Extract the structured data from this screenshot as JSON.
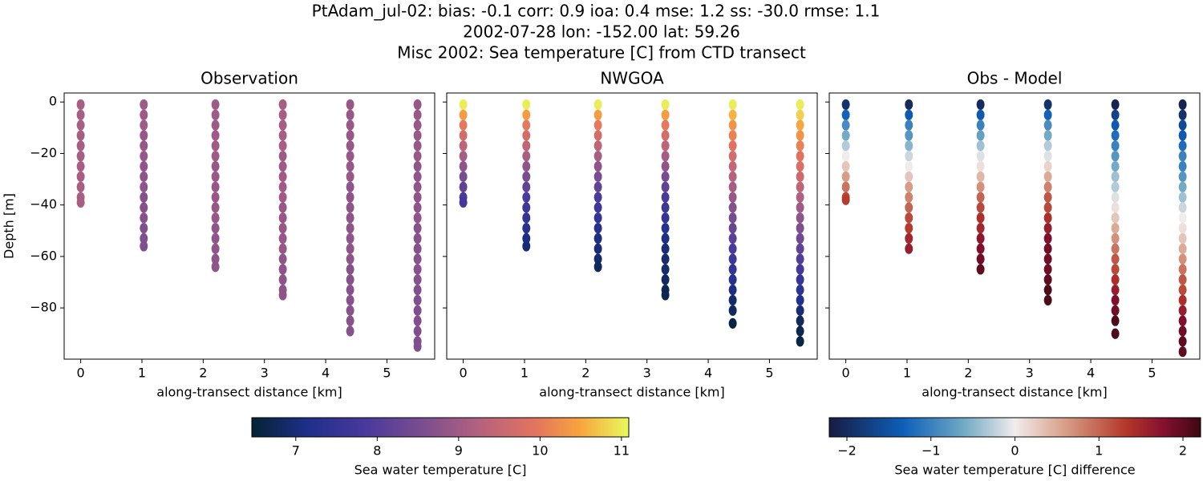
{
  "suptitle": [
    "PtAdam_jul-02: bias: -0.1  corr: 0.9  ioa: 0.4  mse: 1.2  ss: -30.0  rmse: 1.1",
    "2002-07-28 lon: -152.00 lat: 59.26",
    "Misc 2002: Sea temperature [C] from CTD transect"
  ],
  "chart_data": [
    {
      "type": "scatter",
      "title": "Observation",
      "x_label": "along-transect distance [km]",
      "y_label": "Depth [m]",
      "colorbar": 0,
      "xlim": [
        -0.27,
        5.78
      ],
      "ylim": [
        -99.9,
        3.5
      ],
      "xticks": [
        0,
        1,
        2,
        3,
        4,
        5
      ],
      "yticks": [
        0,
        {
          "value": -20,
          "label": "−20"
        },
        {
          "value": -40,
          "label": "−40"
        },
        {
          "value": -60,
          "label": "−60"
        },
        {
          "value": -80,
          "label": "−80"
        }
      ],
      "series": [
        {
          "x": 0,
          "y": [
            -1,
            -5,
            -9,
            -13,
            -17,
            -21,
            -25,
            -29,
            -33,
            -37,
            -39
          ],
          "values": [
            9.1,
            9.1,
            9.1,
            9.1,
            9.1,
            9.1,
            9.1,
            9.1,
            9.1,
            9.1,
            9.1
          ]
        },
        {
          "x": 1.03,
          "y": [
            -1,
            -5,
            -9,
            -13,
            -17,
            -21,
            -25,
            -29,
            -33,
            -37,
            -41,
            -45,
            -49,
            -53,
            -56
          ],
          "values": [
            9.0,
            9.0,
            9.0,
            8.9,
            8.9,
            8.9,
            8.8,
            8.8,
            8.8,
            8.7,
            8.7,
            8.7,
            8.6,
            8.6,
            8.6
          ]
        },
        {
          "x": 2.2,
          "y": [
            -1,
            -5,
            -9,
            -13,
            -17,
            -21,
            -25,
            -29,
            -33,
            -37,
            -41,
            -45,
            -49,
            -53,
            -57,
            -61,
            -64
          ],
          "values": [
            9.0,
            9.0,
            9.0,
            9.0,
            9.0,
            9.0,
            8.9,
            8.9,
            8.9,
            8.9,
            8.9,
            8.9,
            8.8,
            8.8,
            8.8,
            8.8,
            8.8
          ]
        },
        {
          "x": 3.3,
          "y": [
            -1,
            -5,
            -9,
            -13,
            -17,
            -21,
            -25,
            -29,
            -33,
            -37,
            -41,
            -45,
            -49,
            -53,
            -57,
            -61,
            -65,
            -69,
            -73,
            -75
          ],
          "values": [
            9.1,
            9.1,
            9.1,
            9.1,
            9.1,
            9.0,
            9.0,
            9.0,
            9.0,
            9.0,
            8.9,
            8.9,
            8.9,
            8.9,
            8.9,
            8.8,
            8.8,
            8.8,
            8.8,
            8.8
          ]
        },
        {
          "x": 4.4,
          "y": [
            -1,
            -5,
            -9,
            -13,
            -17,
            -21,
            -25,
            -29,
            -33,
            -37,
            -41,
            -45,
            -49,
            -53,
            -57,
            -61,
            -65,
            -69,
            -73,
            -77,
            -81,
            -85,
            -89
          ],
          "values": [
            8.9,
            8.9,
            8.9,
            8.9,
            8.9,
            8.9,
            8.9,
            8.9,
            8.8,
            8.8,
            8.8,
            8.8,
            8.8,
            8.8,
            8.8,
            8.8,
            8.7,
            8.7,
            8.7,
            8.7,
            8.7,
            8.7,
            8.7
          ]
        },
        {
          "x": 5.5,
          "y": [
            -1,
            -5,
            -9,
            -13,
            -17,
            -21,
            -25,
            -29,
            -33,
            -37,
            -41,
            -45,
            -49,
            -53,
            -57,
            -61,
            -65,
            -69,
            -73,
            -77,
            -81,
            -85,
            -89,
            -93,
            -95
          ],
          "values": [
            8.9,
            8.9,
            8.9,
            8.9,
            8.9,
            8.9,
            8.8,
            8.8,
            8.8,
            8.8,
            8.8,
            8.8,
            8.7,
            8.7,
            8.7,
            8.7,
            8.7,
            8.7,
            8.6,
            8.6,
            8.6,
            8.6,
            8.6,
            8.6,
            8.6
          ]
        }
      ]
    },
    {
      "type": "scatter",
      "title": "NWGOA",
      "x_label": "along-transect distance [km]",
      "colorbar": 0,
      "xlim": [
        -0.27,
        5.78
      ],
      "ylim": [
        -99.9,
        3.5
      ],
      "xticks": [
        0,
        1,
        2,
        3,
        4,
        5
      ],
      "yticks": [
        0,
        -20,
        -40,
        -60,
        -80
      ],
      "series": [
        {
          "x": 0,
          "y": [
            -1,
            -5,
            -9,
            -13,
            -17,
            -21,
            -25,
            -29,
            -33,
            -37,
            -39
          ],
          "values": [
            11.0,
            10.4,
            10.0,
            9.7,
            9.4,
            9.1,
            8.8,
            8.5,
            8.2,
            7.9,
            7.8
          ]
        },
        {
          "x": 1.03,
          "y": [
            -1,
            -5,
            -9,
            -13,
            -17,
            -21,
            -25,
            -29,
            -33,
            -37,
            -41,
            -45,
            -49,
            -53,
            -56
          ],
          "values": [
            11.0,
            10.4,
            10.0,
            9.7,
            9.4,
            9.1,
            8.8,
            8.5,
            8.2,
            7.9,
            7.7,
            7.5,
            7.3,
            7.1,
            7.0
          ]
        },
        {
          "x": 2.2,
          "y": [
            -1,
            -5,
            -9,
            -13,
            -17,
            -21,
            -25,
            -29,
            -33,
            -37,
            -41,
            -45,
            -49,
            -53,
            -57,
            -61,
            -64
          ],
          "values": [
            11.0,
            10.4,
            10.0,
            9.7,
            9.4,
            9.1,
            8.8,
            8.5,
            8.2,
            7.9,
            7.7,
            7.5,
            7.3,
            7.1,
            7.0,
            6.9,
            6.8
          ]
        },
        {
          "x": 3.3,
          "y": [
            -1,
            -5,
            -9,
            -13,
            -17,
            -21,
            -25,
            -29,
            -33,
            -37,
            -41,
            -45,
            -49,
            -53,
            -57,
            -61,
            -65,
            -69,
            -73,
            -75
          ],
          "values": [
            11.0,
            10.4,
            10.0,
            9.7,
            9.4,
            9.1,
            8.8,
            8.5,
            8.2,
            7.9,
            7.7,
            7.5,
            7.3,
            7.1,
            7.0,
            6.9,
            6.9,
            6.8,
            6.7,
            6.7
          ]
        },
        {
          "x": 4.4,
          "y": [
            -1,
            -5,
            -9,
            -13,
            -17,
            -21,
            -25,
            -29,
            -33,
            -37,
            -41,
            -45,
            -49,
            -53,
            -57,
            -61,
            -65,
            -69,
            -73,
            -77,
            -81,
            -86
          ],
          "values": [
            11.0,
            10.6,
            10.3,
            10.1,
            9.9,
            9.7,
            9.5,
            9.3,
            9.1,
            8.9,
            8.7,
            8.5,
            8.3,
            8.1,
            7.9,
            7.7,
            7.5,
            7.3,
            7.1,
            6.9,
            6.8,
            6.6
          ]
        },
        {
          "x": 5.5,
          "y": [
            -1,
            -5,
            -9,
            -13,
            -17,
            -21,
            -25,
            -29,
            -33,
            -37,
            -41,
            -45,
            -49,
            -53,
            -57,
            -61,
            -65,
            -69,
            -73,
            -77,
            -81,
            -85,
            -89,
            -93
          ],
          "values": [
            11.0,
            10.8,
            10.5,
            10.3,
            10.1,
            9.9,
            9.8,
            9.6,
            9.4,
            9.2,
            9.0,
            8.8,
            8.6,
            8.4,
            8.2,
            8.0,
            7.8,
            7.6,
            7.4,
            7.2,
            7.0,
            6.8,
            6.7,
            6.6
          ]
        }
      ]
    },
    {
      "type": "scatter",
      "title": "Obs - Model",
      "x_label": "along-transect distance [km]",
      "colorbar": 1,
      "xlim": [
        -0.27,
        5.78
      ],
      "ylim": [
        -99.9,
        3.5
      ],
      "xticks": [
        0,
        1,
        2,
        3,
        4,
        5
      ],
      "yticks": [
        0,
        -20,
        -40,
        -60,
        -80
      ],
      "series": [
        {
          "x": 0,
          "y": [
            -1,
            -5,
            -9,
            -13,
            -17,
            -21,
            -25,
            -29,
            -33,
            -37,
            -38
          ],
          "values": [
            -1.9,
            -1.3,
            -0.9,
            -0.6,
            -0.3,
            0.0,
            0.3,
            0.6,
            0.9,
            1.2,
            1.3
          ]
        },
        {
          "x": 1.03,
          "y": [
            -1,
            -5,
            -9,
            -13,
            -17,
            -21,
            -25,
            -29,
            -33,
            -37,
            -41,
            -45,
            -49,
            -53,
            -57
          ],
          "values": [
            -2.0,
            -1.4,
            -1.0,
            -0.8,
            -0.5,
            -0.2,
            0.0,
            0.3,
            0.6,
            0.8,
            1.0,
            1.2,
            1.3,
            1.5,
            1.6
          ]
        },
        {
          "x": 2.2,
          "y": [
            -1,
            -5,
            -9,
            -13,
            -17,
            -21,
            -25,
            -29,
            -33,
            -37,
            -41,
            -45,
            -49,
            -53,
            -57,
            -61,
            -65
          ],
          "values": [
            -2.0,
            -1.4,
            -1.0,
            -0.7,
            -0.4,
            -0.1,
            0.1,
            0.4,
            0.7,
            1.0,
            1.2,
            1.4,
            1.5,
            1.7,
            1.8,
            1.9,
            2.0
          ]
        },
        {
          "x": 3.3,
          "y": [
            -1,
            -5,
            -9,
            -13,
            -17,
            -21,
            -25,
            -29,
            -33,
            -37,
            -41,
            -45,
            -49,
            -53,
            -57,
            -61,
            -65,
            -69,
            -73,
            -77
          ],
          "values": [
            -1.9,
            -1.3,
            -0.9,
            -0.6,
            -0.3,
            -0.1,
            0.2,
            0.5,
            0.8,
            1.1,
            1.2,
            1.4,
            1.6,
            1.8,
            1.9,
            1.9,
            1.9,
            2.0,
            2.1,
            2.1
          ]
        },
        {
          "x": 4.4,
          "y": [
            -1,
            -5,
            -9,
            -13,
            -17,
            -21,
            -25,
            -29,
            -33,
            -37,
            -41,
            -45,
            -49,
            -53,
            -57,
            -61,
            -65,
            -69,
            -73,
            -77,
            -81,
            -85,
            -90
          ],
          "values": [
            -2.1,
            -1.7,
            -1.4,
            -1.2,
            -1.0,
            -0.8,
            -0.6,
            -0.4,
            -0.3,
            -0.1,
            0.1,
            0.3,
            0.5,
            0.7,
            0.9,
            1.1,
            1.2,
            1.4,
            1.6,
            1.8,
            1.9,
            2.1,
            2.1
          ]
        },
        {
          "x": 5.5,
          "y": [
            -1,
            -5,
            -9,
            -13,
            -17,
            -21,
            -25,
            -29,
            -33,
            -37,
            -41,
            -45,
            -49,
            -53,
            -57,
            -61,
            -65,
            -69,
            -73,
            -77,
            -81,
            -85,
            -89,
            -93,
            -97
          ],
          "values": [
            -2.1,
            -1.9,
            -1.6,
            -1.4,
            -1.2,
            -1.0,
            -1.0,
            -0.8,
            -0.6,
            -0.4,
            -0.2,
            0.0,
            0.1,
            0.3,
            0.5,
            0.7,
            0.9,
            1.1,
            1.2,
            1.4,
            1.6,
            1.8,
            1.9,
            2.0,
            2.0
          ]
        }
      ]
    }
  ],
  "colorbars": [
    {
      "label": "Sea water temperature [C]",
      "cmap": "thermal",
      "lim": [
        6.46,
        11.09
      ],
      "ticks": [
        7,
        8,
        9,
        10,
        11
      ]
    },
    {
      "label": "Sea water temperature [C] difference",
      "cmap": "balance",
      "lim": [
        -2.21,
        2.21
      ],
      "ticks": [
        {
          "value": -2,
          "label": "−2"
        },
        {
          "value": -1,
          "label": "−1"
        },
        0,
        1,
        2
      ]
    }
  ]
}
